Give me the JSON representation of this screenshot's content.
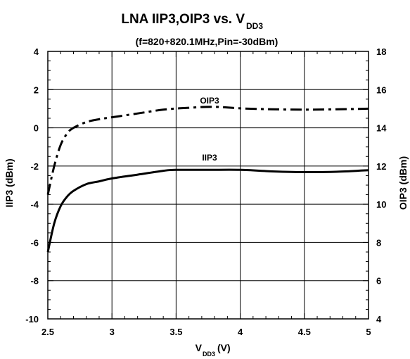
{
  "chart_data": {
    "type": "line",
    "title_main": "LNA IIP3,OIP3 vs. V",
    "title_sub": "DD3",
    "subtitle": "(f=820+820.1MHz,Pin=-30dBm)",
    "xlabel_main": "V",
    "xlabel_sub": "DD3",
    "xlabel_unit": " (V)",
    "ylabel_left": "IIP3 (dBm)",
    "ylabel_right": "OIP3 (dBm)",
    "xlim": [
      2.5,
      5
    ],
    "ylim_left": [
      -10,
      4
    ],
    "ylim_right": [
      4,
      18
    ],
    "x_ticks": [
      2.5,
      3,
      3.5,
      4,
      4.5,
      5
    ],
    "x_tick_labels": [
      "2.5",
      "3",
      "3.5",
      "4",
      "4.5",
      "5"
    ],
    "y_left_ticks": [
      4,
      2,
      0,
      -2,
      -4,
      -6,
      -8,
      -10
    ],
    "y_left_tick_labels": [
      "4",
      "2",
      "0",
      "-2",
      "-4",
      "-6",
      "-8",
      "-10"
    ],
    "y_right_ticks": [
      18,
      16,
      14,
      12,
      10,
      8,
      6,
      4
    ],
    "y_right_tick_labels": [
      "18",
      "16",
      "14",
      "12",
      "10",
      "8",
      "6",
      "4"
    ],
    "grid": true,
    "series": [
      {
        "name": "IIP3",
        "axis": "left",
        "style": "solid",
        "x": [
          2.5,
          2.55,
          2.6,
          2.65,
          2.7,
          2.8,
          2.9,
          3.0,
          3.2,
          3.4,
          3.5,
          3.75,
          4.0,
          4.25,
          4.5,
          4.75,
          5.0
        ],
        "y": [
          -6.5,
          -5.0,
          -4.1,
          -3.6,
          -3.3,
          -2.95,
          -2.8,
          -2.65,
          -2.45,
          -2.25,
          -2.2,
          -2.2,
          -2.2,
          -2.28,
          -2.32,
          -2.3,
          -2.22
        ]
      },
      {
        "name": "OIP3",
        "axis": "left",
        "style": "dashed",
        "x": [
          2.5,
          2.55,
          2.6,
          2.65,
          2.7,
          2.8,
          2.9,
          3.0,
          3.2,
          3.4,
          3.6,
          3.8,
          4.0,
          4.25,
          4.5,
          4.75,
          5.0
        ],
        "y": [
          -3.5,
          -2.0,
          -0.9,
          -0.3,
          0.0,
          0.3,
          0.45,
          0.55,
          0.75,
          0.95,
          1.05,
          1.1,
          1.02,
          0.97,
          0.95,
          0.97,
          1.0
        ]
      }
    ]
  }
}
